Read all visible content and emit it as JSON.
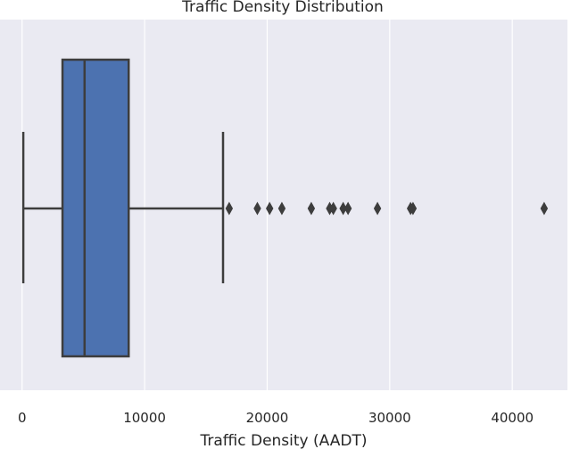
{
  "chart_data": {
    "type": "box",
    "title": "Traffic Density Distribution",
    "xlabel": "Traffic Density (AADT)",
    "ylabel": "",
    "xlim": [
      -1800,
      44500
    ],
    "xticks": [
      0,
      10000,
      20000,
      30000,
      40000
    ],
    "xtick_labels": [
      "0",
      "10000",
      "20000",
      "30000",
      "40000"
    ],
    "grid": true,
    "orientation": "horizontal",
    "box": {
      "whisker_low": 100,
      "q1": 3300,
      "median": 5100,
      "q3": 8700,
      "whisker_high": 16400
    },
    "outliers": [
      16900,
      19200,
      20200,
      21200,
      23600,
      25100,
      25400,
      26200,
      26600,
      29000,
      31700,
      31900,
      42600
    ],
    "colors": {
      "plot_background": "#eaeaf2",
      "grid": "#ffffff",
      "box_fill": "#4c72b0",
      "box_edge": "#3d3d3d",
      "outlier": "#3d3d3d"
    }
  }
}
